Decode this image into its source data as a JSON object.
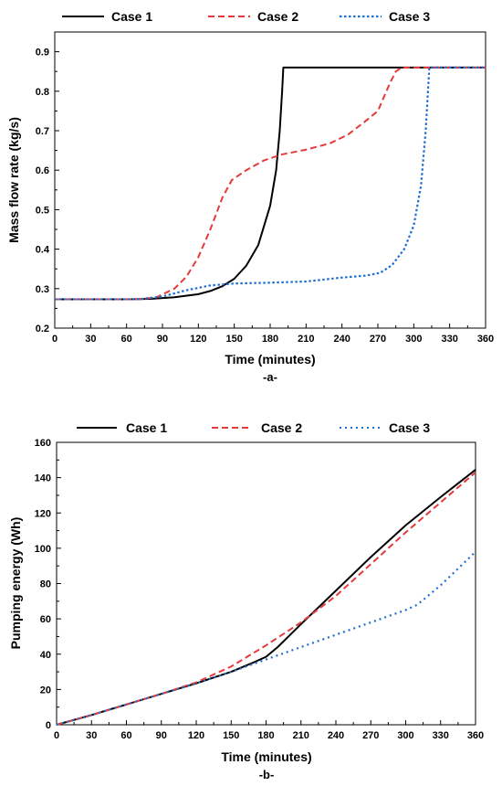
{
  "chart_data": [
    {
      "type": "line",
      "caption": "-a-",
      "xlabel": "Time (minutes)",
      "ylabel": "Mass flow rate (kg/s)",
      "xlim": [
        0,
        360
      ],
      "ylim": [
        0.2,
        0.95
      ],
      "xticks": [
        0,
        30,
        60,
        90,
        120,
        150,
        180,
        210,
        240,
        270,
        300,
        330,
        360
      ],
      "yticks": [
        0.2,
        0.3,
        0.4,
        0.5,
        0.6,
        0.7,
        0.8,
        0.9
      ],
      "ytick_decimals": 1,
      "grid": false,
      "legend_position": "top",
      "series": [
        {
          "name": "Case 1",
          "color": "#000000",
          "style": "solid",
          "points": [
            [
              0,
              0.273
            ],
            [
              60,
              0.273
            ],
            [
              80,
              0.274
            ],
            [
              100,
              0.278
            ],
            [
              120,
              0.286
            ],
            [
              130,
              0.294
            ],
            [
              140,
              0.306
            ],
            [
              150,
              0.325
            ],
            [
              160,
              0.358
            ],
            [
              170,
              0.41
            ],
            [
              180,
              0.51
            ],
            [
              185,
              0.6
            ],
            [
              188,
              0.7
            ],
            [
              190,
              0.8
            ],
            [
              191,
              0.86
            ],
            [
              360,
              0.86
            ]
          ]
        },
        {
          "name": "Case 2",
          "color": "#e63a3a",
          "style": "dashed",
          "points": [
            [
              0,
              0.273
            ],
            [
              70,
              0.273
            ],
            [
              85,
              0.278
            ],
            [
              100,
              0.3
            ],
            [
              110,
              0.33
            ],
            [
              120,
              0.38
            ],
            [
              130,
              0.45
            ],
            [
              140,
              0.53
            ],
            [
              148,
              0.575
            ],
            [
              160,
              0.6
            ],
            [
              175,
              0.625
            ],
            [
              190,
              0.64
            ],
            [
              210,
              0.652
            ],
            [
              230,
              0.668
            ],
            [
              245,
              0.69
            ],
            [
              260,
              0.725
            ],
            [
              270,
              0.75
            ],
            [
              280,
              0.82
            ],
            [
              285,
              0.85
            ],
            [
              290,
              0.86
            ],
            [
              360,
              0.86
            ]
          ]
        },
        {
          "name": "Case 3",
          "color": "#1f6fd1",
          "style": "dotted",
          "points": [
            [
              0,
              0.273
            ],
            [
              70,
              0.273
            ],
            [
              90,
              0.28
            ],
            [
              110,
              0.296
            ],
            [
              130,
              0.308
            ],
            [
              150,
              0.313
            ],
            [
              180,
              0.315
            ],
            [
              210,
              0.318
            ],
            [
              240,
              0.328
            ],
            [
              260,
              0.333
            ],
            [
              272,
              0.34
            ],
            [
              282,
              0.36
            ],
            [
              292,
              0.4
            ],
            [
              300,
              0.46
            ],
            [
              306,
              0.56
            ],
            [
              310,
              0.7
            ],
            [
              313,
              0.86
            ],
            [
              360,
              0.86
            ]
          ]
        }
      ]
    },
    {
      "type": "line",
      "caption": "-b-",
      "xlabel": "Time (minutes)",
      "ylabel": "Pumping energy (Wh)",
      "xlim": [
        0,
        360
      ],
      "ylim": [
        0,
        160
      ],
      "xticks": [
        0,
        30,
        60,
        90,
        120,
        150,
        180,
        210,
        240,
        270,
        300,
        330,
        360
      ],
      "yticks": [
        0,
        20,
        40,
        60,
        80,
        100,
        120,
        140,
        160
      ],
      "ytick_decimals": 0,
      "grid": false,
      "legend_position": "top",
      "series": [
        {
          "name": "Case 1",
          "color": "#000000",
          "style": "solid",
          "points": [
            [
              0,
              0
            ],
            [
              30,
              5.5
            ],
            [
              60,
              11.5
            ],
            [
              90,
              17.5
            ],
            [
              120,
              23.5
            ],
            [
              150,
              30
            ],
            [
              170,
              35.5
            ],
            [
              180,
              38.5
            ],
            [
              190,
              44
            ],
            [
              210,
              57
            ],
            [
              240,
              76
            ],
            [
              270,
              95
            ],
            [
              300,
              113
            ],
            [
              330,
              129
            ],
            [
              360,
              144.5
            ]
          ]
        },
        {
          "name": "Case 2",
          "color": "#e63a3a",
          "style": "dashed",
          "points": [
            [
              0,
              0
            ],
            [
              30,
              5.5
            ],
            [
              60,
              11.5
            ],
            [
              90,
              17.5
            ],
            [
              120,
              24
            ],
            [
              150,
              33
            ],
            [
              180,
              45
            ],
            [
              210,
              58
            ],
            [
              240,
              73
            ],
            [
              270,
              91
            ],
            [
              300,
              109
            ],
            [
              330,
              126
            ],
            [
              360,
              143
            ]
          ]
        },
        {
          "name": "Case 3",
          "color": "#1f6fd1",
          "style": "dotted",
          "points": [
            [
              0,
              0
            ],
            [
              30,
              5.5
            ],
            [
              60,
              11.5
            ],
            [
              90,
              17.5
            ],
            [
              120,
              23.5
            ],
            [
              150,
              30
            ],
            [
              180,
              37
            ],
            [
              210,
              44
            ],
            [
              240,
              51
            ],
            [
              270,
              58
            ],
            [
              300,
              65
            ],
            [
              310,
              68
            ],
            [
              330,
              79
            ],
            [
              360,
              98
            ]
          ]
        }
      ]
    }
  ]
}
